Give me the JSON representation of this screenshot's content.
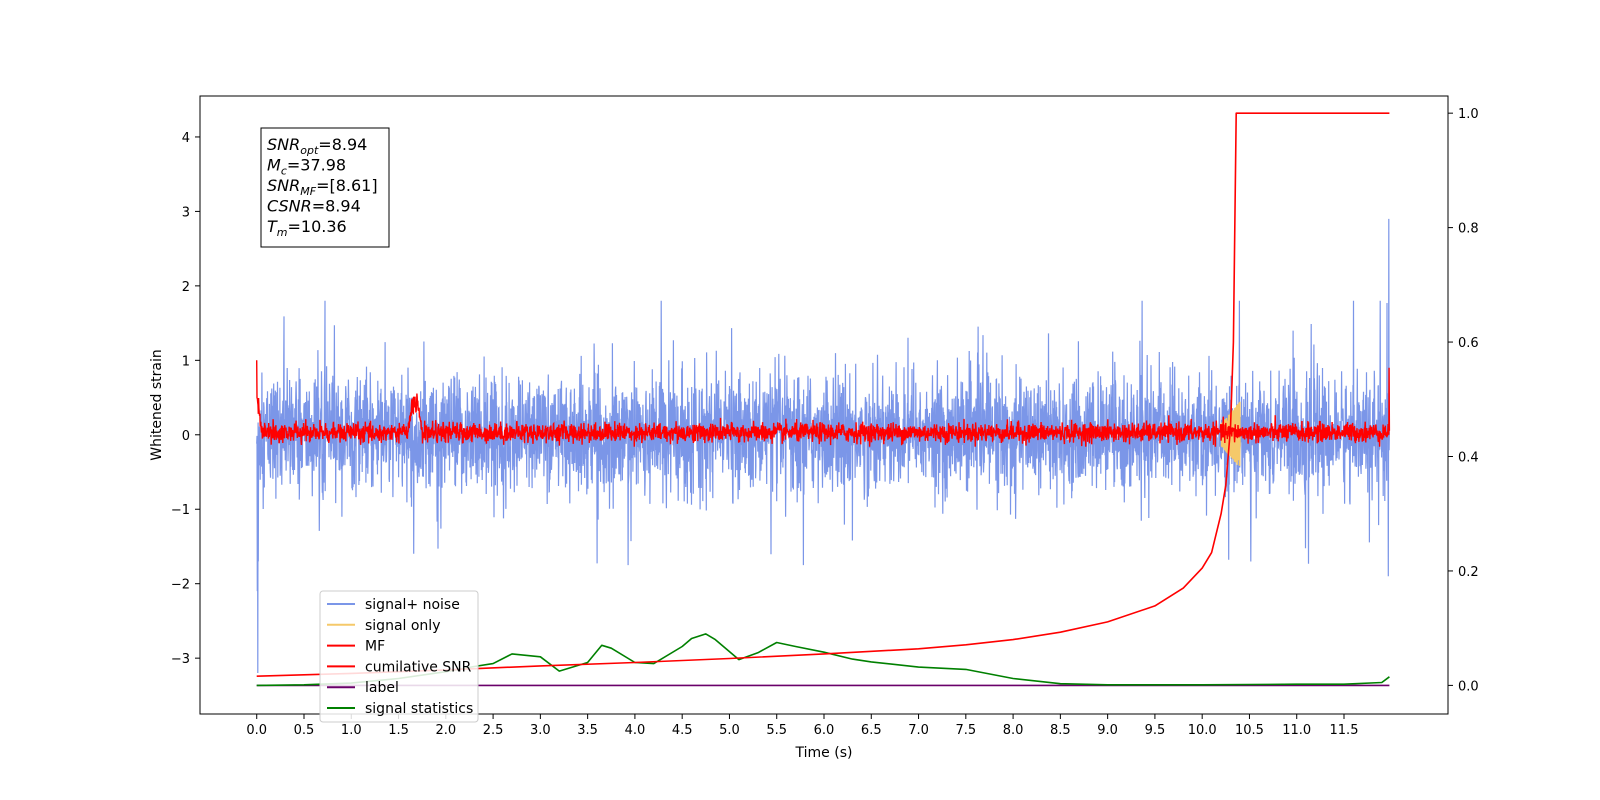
{
  "chart_data": {
    "type": "line",
    "title": "",
    "xlabel": "Time (s)",
    "ylabel": "Whitened strain",
    "y2label": "",
    "xlim": [
      -0.6,
      12.6
    ],
    "ylim": [
      -3.75,
      4.55
    ],
    "y2lim": [
      -0.05,
      1.03
    ],
    "xticks": [
      0.0,
      0.5,
      1.0,
      1.5,
      2.0,
      2.5,
      3.0,
      3.5,
      4.0,
      4.5,
      5.0,
      5.5,
      6.0,
      6.5,
      7.0,
      7.5,
      8.0,
      8.5,
      9.0,
      9.5,
      10.0,
      10.5,
      11.0,
      11.5
    ],
    "xtick_labels": [
      "0.0",
      "0.5",
      "1.0",
      "1.5",
      "2.0",
      "2.5",
      "3.0",
      "3.5",
      "4.0",
      "4.5",
      "5.0",
      "5.5",
      "6.0",
      "6.5",
      "7.0",
      "7.5",
      "8.0",
      "8.5",
      "9.0",
      "9.5",
      "10.0",
      "10.5",
      "11.0",
      "11.5"
    ],
    "yticks": [
      -3,
      -2,
      -1,
      0,
      1,
      2,
      3,
      4
    ],
    "ytick_labels": [
      "−3",
      "−2",
      "−1",
      "0",
      "1",
      "2",
      "3",
      "4"
    ],
    "y2ticks": [
      0.0,
      0.2,
      0.4,
      0.6,
      0.8,
      1.0
    ],
    "y2tick_labels": [
      "0.0",
      "0.2",
      "0.4",
      "0.6",
      "0.8",
      "1.0"
    ],
    "grid": false,
    "legend_position": "lower-left",
    "annotation": {
      "lines": [
        {
          "sym": "SNR",
          "sub": "opt",
          "rest": "=8.94"
        },
        {
          "sym": "M",
          "sub": "c",
          "rest": "=37.98"
        },
        {
          "sym": "SNR",
          "sub": "MF",
          "rest": "=[8.61]"
        },
        {
          "sym": "CSNR",
          "sub": "",
          "rest": "=8.94"
        },
        {
          "sym": "T",
          "sub": "m",
          "rest": "=10.36"
        }
      ]
    },
    "series": [
      {
        "name": "signal+ noise",
        "color": "#7b96e8",
        "axis": "left",
        "kind": "noise",
        "x_range": [
          0.0,
          11.98
        ],
        "typical_amplitude": 0.95,
        "peak_range": [
          -1.75,
          1.8
        ],
        "end_spike": 2.9
      },
      {
        "name": "signal only",
        "color": "#f5c96a",
        "axis": "left",
        "kind": "chirp",
        "x_range": [
          10.2,
          10.4
        ],
        "peak_range": [
          -0.5,
          0.4
        ]
      },
      {
        "name": "MF",
        "color": "#ff0000",
        "axis": "left",
        "kind": "noise",
        "x_range": [
          0.0,
          11.98
        ],
        "typical_amplitude": 0.13,
        "start": 1.0,
        "bump_x": [
          1.6,
          1.75
        ],
        "bump_peak": 0.63
      },
      {
        "name": "cumilative SNR",
        "color": "#ff0000",
        "axis": "right",
        "kind": "curve",
        "x": [
          0.0,
          1.0,
          2.0,
          3.0,
          4.0,
          5.0,
          6.0,
          7.0,
          7.5,
          8.0,
          8.5,
          9.0,
          9.5,
          9.8,
          10.0,
          10.1,
          10.2,
          10.25,
          10.3,
          10.33,
          10.36,
          11.98
        ],
        "y": [
          0.016,
          0.021,
          0.027,
          0.034,
          0.04,
          0.047,
          0.055,
          0.064,
          0.071,
          0.08,
          0.093,
          0.111,
          0.139,
          0.17,
          0.205,
          0.232,
          0.3,
          0.35,
          0.45,
          0.6,
          1.0,
          1.0
        ]
      },
      {
        "name": "label",
        "color": "#6a006a",
        "axis": "right",
        "kind": "curve",
        "x": [
          0.0,
          11.98
        ],
        "y": [
          0.0,
          0.0
        ]
      },
      {
        "name": "signal statistics",
        "color": "#008000",
        "axis": "right",
        "kind": "curve",
        "x": [
          0.0,
          0.5,
          1.0,
          1.5,
          2.0,
          2.3,
          2.5,
          2.7,
          3.0,
          3.2,
          3.5,
          3.65,
          3.75,
          4.0,
          4.2,
          4.5,
          4.6,
          4.75,
          4.85,
          5.1,
          5.3,
          5.5,
          5.7,
          6.0,
          6.3,
          6.5,
          7.0,
          7.5,
          8.0,
          8.5,
          9.0,
          9.5,
          10.0,
          10.5,
          11.0,
          11.5,
          11.9,
          11.98
        ],
        "y": [
          0.0,
          0.001,
          0.004,
          0.012,
          0.024,
          0.033,
          0.038,
          0.055,
          0.05,
          0.025,
          0.04,
          0.07,
          0.065,
          0.04,
          0.038,
          0.068,
          0.082,
          0.09,
          0.08,
          0.045,
          0.057,
          0.075,
          0.068,
          0.058,
          0.046,
          0.041,
          0.032,
          0.028,
          0.012,
          0.003,
          0.001,
          0.001,
          0.001,
          0.0015,
          0.002,
          0.002,
          0.005,
          0.015
        ]
      }
    ]
  }
}
